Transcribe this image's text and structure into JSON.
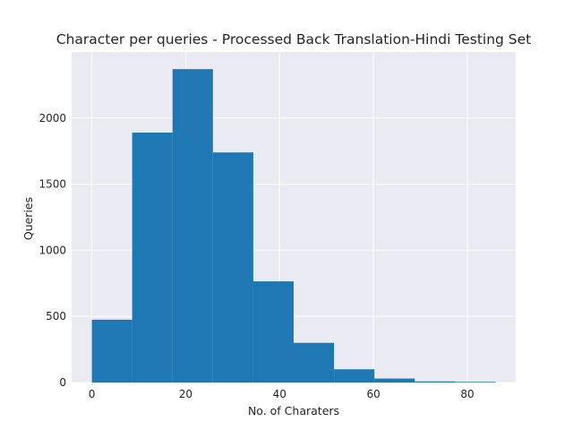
{
  "chart_data": {
    "type": "bar",
    "title": "Character per queries - Processed Back Translation-Hindi Testing Set",
    "xlabel": "No. of Charaters",
    "ylabel": "Queries",
    "xlim": [
      -4.3,
      90.3
    ],
    "ylim": [
      0,
      2500
    ],
    "xticks": [
      0,
      20,
      40,
      60,
      80
    ],
    "yticks": [
      0,
      500,
      1000,
      1500,
      2000
    ],
    "grid": true,
    "background": "#eaeaf2",
    "bar_color": "#1f77b4",
    "bins": [
      {
        "x0": 0,
        "x1": 8.6,
        "value": 475
      },
      {
        "x0": 8.6,
        "x1": 17.2,
        "value": 1890
      },
      {
        "x0": 17.2,
        "x1": 25.8,
        "value": 2370
      },
      {
        "x0": 25.8,
        "x1": 34.4,
        "value": 1740
      },
      {
        "x0": 34.4,
        "x1": 43.0,
        "value": 765
      },
      {
        "x0": 43.0,
        "x1": 51.6,
        "value": 300
      },
      {
        "x0": 51.6,
        "x1": 60.2,
        "value": 100
      },
      {
        "x0": 60.2,
        "x1": 68.8,
        "value": 30
      },
      {
        "x0": 68.8,
        "x1": 77.4,
        "value": 8
      },
      {
        "x0": 77.4,
        "x1": 86.0,
        "value": 5
      }
    ]
  }
}
